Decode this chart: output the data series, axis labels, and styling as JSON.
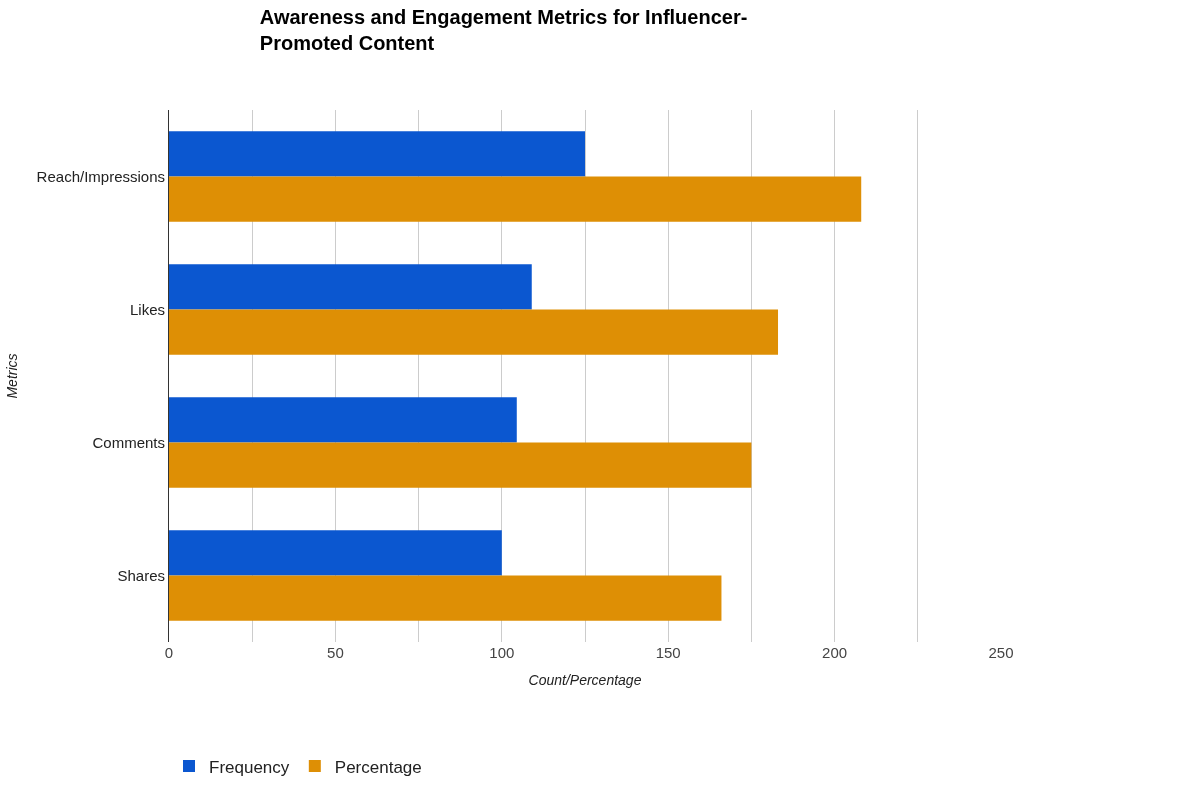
{
  "chart_data": {
    "type": "bar",
    "orientation": "horizontal",
    "title": "Awareness and Engagement Metrics for Influencer-\nPromoted Content",
    "xlabel": "Count/Percentage",
    "ylabel": "Metrics",
    "categories": [
      "Reach/Impressions",
      "Likes",
      "Comments",
      "Shares"
    ],
    "series": [
      {
        "name": "Frequency",
        "color": "#0b57d0",
        "values": [
          125,
          109,
          104.5,
          100
        ]
      },
      {
        "name": "Percentage",
        "color": "#de8f05",
        "values": [
          208,
          183,
          175,
          166
        ]
      }
    ],
    "xlim": [
      0,
      250
    ],
    "xticks": [
      0,
      {
        "value": 25,
        "label": null
      },
      50,
      {
        "value": 75,
        "label": null
      },
      100,
      {
        "value": 125,
        "label": null
      },
      150,
      {
        "value": 175,
        "label": null
      },
      200,
      {
        "value": 225,
        "label": null
      },
      250
    ],
    "grid": "x",
    "legend": "bottom"
  }
}
